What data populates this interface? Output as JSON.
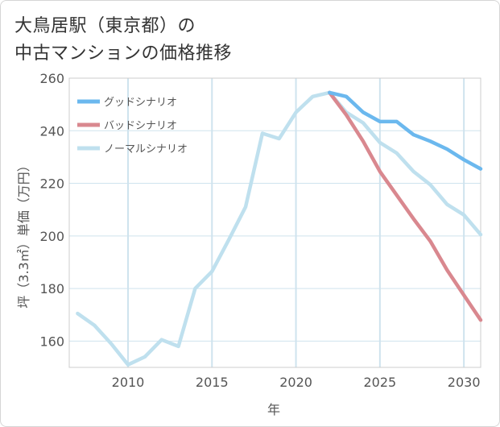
{
  "title_lines": [
    "大鳥居駅（東京都）の",
    "中古マンションの価格推移"
  ],
  "colors": {
    "good": "#6bb8ee",
    "bad": "#d9888f",
    "normal": "#bfe0ee",
    "grid": "#cfe3ee",
    "axis_text": "#555555",
    "plot_border": "#cccccc"
  },
  "chart_data": {
    "type": "line",
    "title": "大鳥居駅（東京都）の中古マンションの価格推移",
    "xlabel": "年",
    "ylabel": "坪（3.3㎡）単価（万円）",
    "xlim": [
      2006.5,
      2031
    ],
    "ylim": [
      150,
      260
    ],
    "xticks": [
      2010,
      2015,
      2020,
      2025,
      2030
    ],
    "yticks": [
      160,
      180,
      200,
      220,
      240,
      260
    ],
    "grid": true,
    "legend_position": "top-left",
    "series": [
      {
        "name": "グッドシナリオ",
        "color_key": "good",
        "x": [
          2022,
          2023,
          2024,
          2025,
          2026,
          2027,
          2028,
          2029,
          2030,
          2031
        ],
        "y": [
          254.5,
          253,
          247,
          243.5,
          243.5,
          238.5,
          236,
          233,
          229,
          225.5
        ]
      },
      {
        "name": "バッドシナリオ",
        "color_key": "bad",
        "x": [
          2022,
          2023,
          2024,
          2025,
          2026,
          2027,
          2028,
          2029,
          2030,
          2031
        ],
        "y": [
          254.5,
          246,
          236,
          224.5,
          215.5,
          206.5,
          198,
          187,
          177.5,
          168
        ]
      },
      {
        "name": "ノーマルシナリオ",
        "color_key": "normal",
        "x": [
          2007,
          2008,
          2009,
          2010,
          2011,
          2012,
          2013,
          2014,
          2015,
          2016,
          2017,
          2018,
          2019,
          2020,
          2021,
          2022,
          2023,
          2024,
          2025,
          2026,
          2027,
          2028,
          2029,
          2030,
          2031
        ],
        "y": [
          170.5,
          166,
          159,
          151,
          154,
          160.5,
          158,
          180,
          186.5,
          198.5,
          211,
          239,
          237,
          247,
          253,
          254.5,
          247,
          243,
          235.5,
          231.5,
          224.5,
          219.5,
          212,
          208,
          200.5
        ]
      }
    ]
  }
}
